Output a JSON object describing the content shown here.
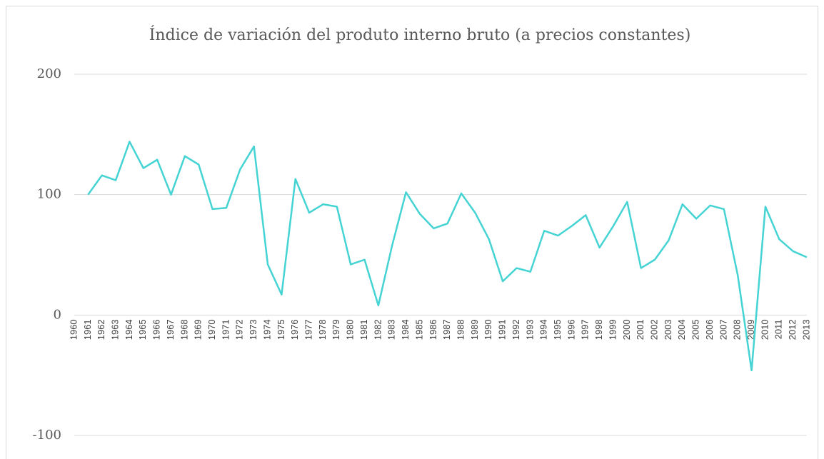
{
  "chart_data": {
    "type": "line",
    "title": "Índice de variación del produto interno bruto (a precios constantes)",
    "categories": [
      "1960",
      "1961",
      "1962",
      "1963",
      "1964",
      "1965",
      "1966",
      "1967",
      "1968",
      "1969",
      "1970",
      "1971",
      "1972",
      "1973",
      "1974",
      "1975",
      "1976",
      "1977",
      "1978",
      "1979",
      "1980",
      "1981",
      "1982",
      "1983",
      "1984",
      "1985",
      "1986",
      "1987",
      "1988",
      "1989",
      "1990",
      "1991",
      "1992",
      "1993",
      "1994",
      "1995",
      "1996",
      "1997",
      "1998",
      "1999",
      "2000",
      "2001",
      "2002",
      "2003",
      "2004",
      "2005",
      "2006",
      "2007",
      "2008",
      "2009",
      "2010",
      "2011",
      "2012",
      "2013"
    ],
    "values": [
      null,
      100,
      116,
      112,
      144,
      122,
      129,
      100,
      132,
      125,
      88,
      89,
      121,
      140,
      42,
      17,
      113,
      85,
      92,
      90,
      42,
      46,
      8,
      58,
      102,
      84,
      72,
      76,
      101,
      85,
      63,
      28,
      39,
      36,
      70,
      66,
      74,
      83,
      56,
      74,
      94,
      39,
      46,
      62,
      92,
      80,
      91,
      88,
      33,
      -46,
      90,
      63,
      53,
      48
    ],
    "color": "#45d3d3",
    "ylim": [
      -100,
      200
    ],
    "yticks": [
      -100,
      0,
      100,
      200
    ],
    "grid": true
  }
}
